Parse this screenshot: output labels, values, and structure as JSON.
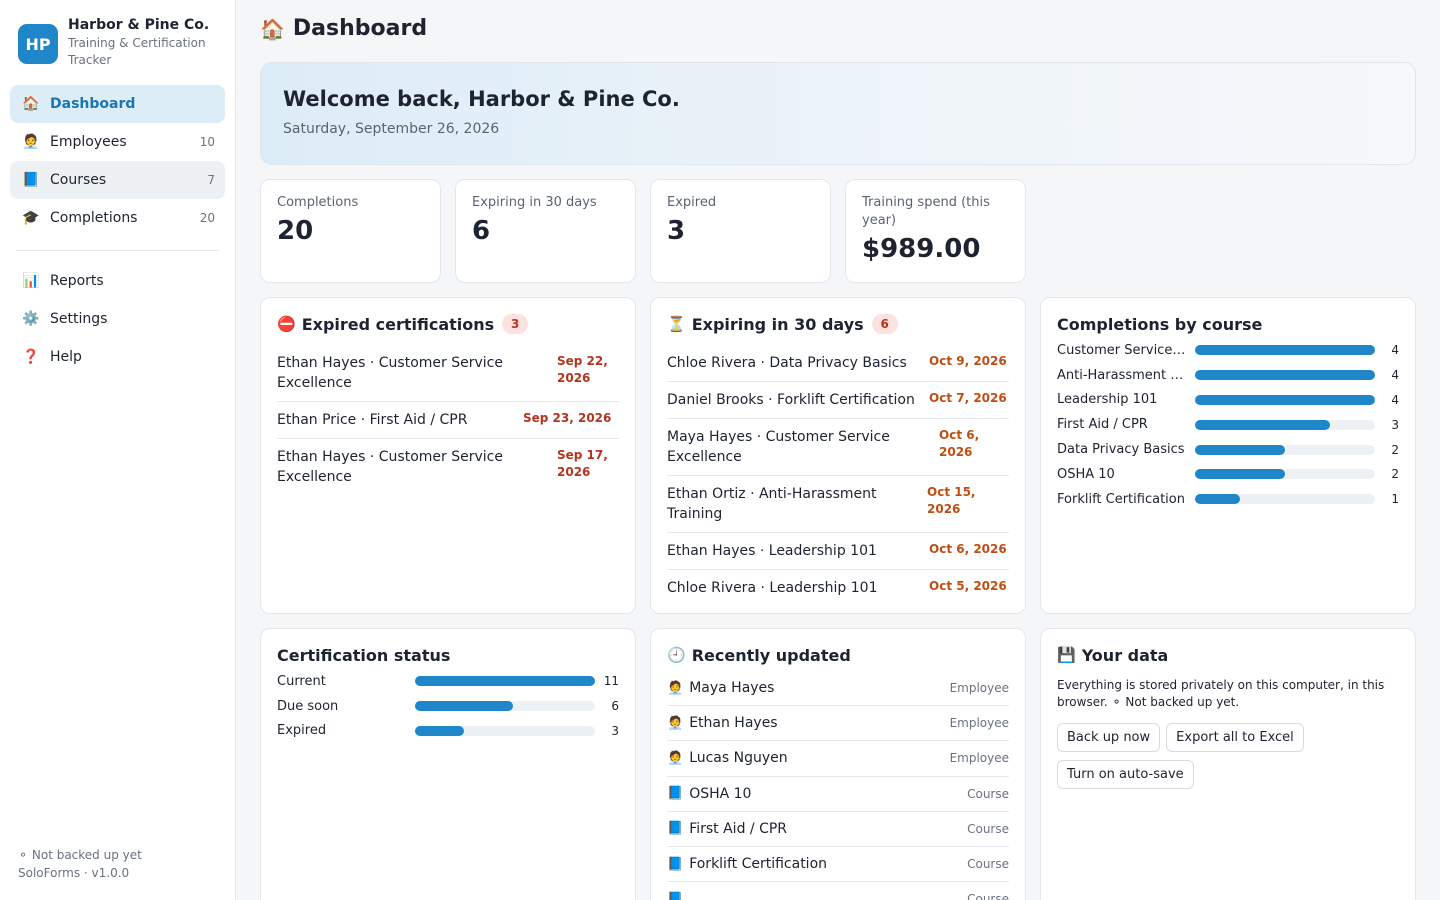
{
  "brand": {
    "initials": "HP",
    "name": "Harbor & Pine Co.",
    "subtitle": "Training & Certification Tracker"
  },
  "nav": {
    "items": [
      {
        "icon": "🏠",
        "label": "Dashboard",
        "count": ""
      },
      {
        "icon": "🧑‍💼",
        "label": "Employees",
        "count": "10"
      },
      {
        "icon": "📘",
        "label": "Courses",
        "count": "7"
      },
      {
        "icon": "🎓",
        "label": "Completions",
        "count": "20"
      }
    ],
    "secondary": [
      {
        "icon": "📊",
        "label": "Reports"
      },
      {
        "icon": "⚙️",
        "label": "Settings"
      },
      {
        "icon": "❓",
        "label": "Help"
      }
    ]
  },
  "footer": {
    "backup_status": "⚬ Not backed up yet",
    "version": "SoloForms · v1.0.0"
  },
  "page": {
    "icon": "🏠",
    "title": "Dashboard"
  },
  "welcome": {
    "heading": "Welcome back, Harbor & Pine Co.",
    "date": "Saturday, September 26, 2026"
  },
  "stats": [
    {
      "label": "Completions",
      "value": "20"
    },
    {
      "label": "Expiring in 30 days",
      "value": "6"
    },
    {
      "label": "Expired",
      "value": "3"
    },
    {
      "label": "Training spend (this year)",
      "value": "$989.00"
    }
  ],
  "expired": {
    "icon": "⛔",
    "title": "Expired certifications",
    "count": "3",
    "rows": [
      {
        "who": "Ethan Hayes · Customer Service Excellence",
        "when": "Sep 22, 2026"
      },
      {
        "who": "Ethan Price · First Aid / CPR",
        "when": "Sep 23, 2026"
      },
      {
        "who": "Ethan Hayes · Customer Service Excellence",
        "when": "Sep 17, 2026"
      }
    ]
  },
  "expiring": {
    "icon": "⏳",
    "title": "Expiring in 30 days",
    "count": "6",
    "rows": [
      {
        "who": "Chloe Rivera · Data Privacy Basics",
        "when": "Oct 9, 2026"
      },
      {
        "who": "Daniel Brooks · Forklift Certification",
        "when": "Oct 7, 2026"
      },
      {
        "who": "Maya Hayes · Customer Service Excellence",
        "when": "Oct 6, 2026"
      },
      {
        "who": "Ethan Ortiz · Anti-Harassment Training",
        "when": "Oct 15, 2026"
      },
      {
        "who": "Ethan Hayes · Leadership 101",
        "when": "Oct 6, 2026"
      },
      {
        "who": "Chloe Rivera · Leadership 101",
        "when": "Oct 5, 2026"
      }
    ]
  },
  "by_course": {
    "title": "Completions by course",
    "max": 4,
    "rows": [
      {
        "name": "Customer Service Excellence",
        "display": "Customer Service…",
        "value": 4
      },
      {
        "name": "Anti-Harassment Training",
        "display": "Anti-Harassment …",
        "value": 4
      },
      {
        "name": "Leadership 101",
        "display": "Leadership 101",
        "value": 4
      },
      {
        "name": "First Aid / CPR",
        "display": "First Aid / CPR",
        "value": 3
      },
      {
        "name": "Data Privacy Basics",
        "display": "Data Privacy Basics",
        "value": 2
      },
      {
        "name": "OSHA 10",
        "display": "OSHA 10",
        "value": 2
      },
      {
        "name": "Forklift Certification",
        "display": "Forklift Certification",
        "value": 1
      }
    ]
  },
  "cert_status": {
    "title": "Certification status",
    "max": 11,
    "rows": [
      {
        "name": "Current",
        "value": 11
      },
      {
        "name": "Due soon",
        "value": 6
      },
      {
        "name": "Expired",
        "value": 3
      }
    ]
  },
  "recent": {
    "icon": "🕘",
    "title": "Recently updated",
    "rows": [
      {
        "icon": "🧑‍💼",
        "name": "Maya Hayes",
        "type": "Employee"
      },
      {
        "icon": "🧑‍💼",
        "name": "Ethan Hayes",
        "type": "Employee"
      },
      {
        "icon": "🧑‍💼",
        "name": "Lucas Nguyen",
        "type": "Employee"
      },
      {
        "icon": "📘",
        "name": "OSHA 10",
        "type": "Course"
      },
      {
        "icon": "📘",
        "name": "First Aid / CPR",
        "type": "Course"
      },
      {
        "icon": "📘",
        "name": "Forklift Certification",
        "type": "Course"
      },
      {
        "icon": "📘",
        "name": "",
        "type": "Course"
      }
    ]
  },
  "your_data": {
    "icon": "💾",
    "title": "Your data",
    "text": "Everything is stored privately on this computer, in this browser. ⚬ Not backed up yet.",
    "buttons": [
      "Back up now",
      "Export all to Excel",
      "Turn on auto-save"
    ]
  },
  "colors": {
    "accent": "#1f86c9",
    "danger": "#b5341f",
    "warning": "#c04e12"
  }
}
